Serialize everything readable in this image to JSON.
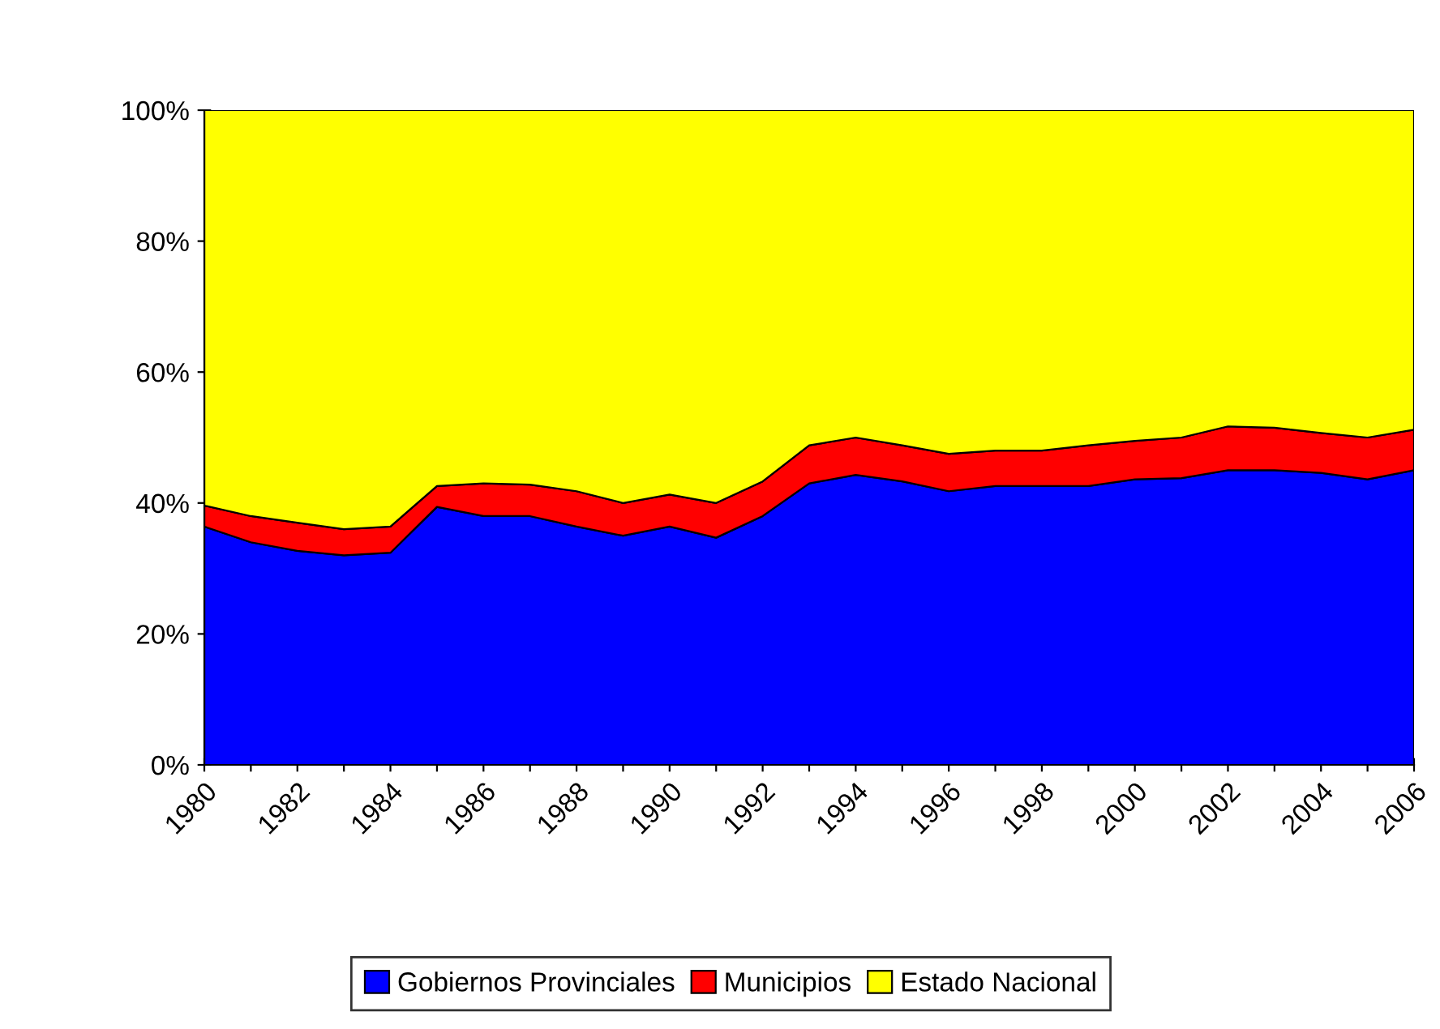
{
  "chart_data": {
    "type": "area",
    "stacked": true,
    "x": [
      1980,
      1981,
      1982,
      1983,
      1984,
      1985,
      1986,
      1987,
      1988,
      1989,
      1990,
      1991,
      1992,
      1993,
      1994,
      1995,
      1996,
      1997,
      1998,
      1999,
      2000,
      2001,
      2002,
      2003,
      2004,
      2005,
      2006
    ],
    "series": [
      {
        "name": "Gobiernos Provinciales",
        "color": "#0000ff",
        "values": [
          36.4,
          34,
          32.7,
          32,
          32.4,
          39.4,
          38,
          38,
          36.4,
          35,
          36.4,
          34.7,
          38,
          43,
          44.3,
          43.3,
          41.8,
          42.6,
          42.6,
          42.6,
          43.6,
          43.8,
          45,
          45,
          44.6,
          43.6,
          45
        ]
      },
      {
        "name": "Municipios",
        "color": "#ff0000",
        "values": [
          3.2,
          4,
          4.3,
          4,
          4,
          3.2,
          5,
          4.8,
          5.4,
          5,
          4.9,
          5.3,
          5.3,
          5.8,
          5.7,
          5.5,
          5.7,
          5.4,
          5.4,
          6.2,
          5.9,
          6.2,
          6.7,
          6.5,
          6.1,
          6.4,
          6.2
        ]
      },
      {
        "name": "Estado Nacional",
        "color": "#ffff00",
        "values": [
          60.4,
          62,
          63,
          64,
          63.6,
          57.4,
          57,
          57.2,
          58.2,
          60,
          58.7,
          60,
          56.7,
          51.2,
          50,
          51.2,
          52.5,
          52,
          52,
          51.2,
          50.5,
          50,
          48.3,
          48.5,
          49.3,
          50,
          48.8
        ]
      }
    ],
    "xlim": [
      1980,
      2006
    ],
    "xticks": [
      1980,
      {
        "value": 1981,
        "label": null
      },
      1982,
      {
        "value": 1983,
        "label": null
      },
      1984,
      {
        "value": 1985,
        "label": null
      },
      1986,
      {
        "value": 1987,
        "label": null
      },
      1988,
      {
        "value": 1989,
        "label": null
      },
      1990,
      {
        "value": 1991,
        "label": null
      },
      1992,
      {
        "value": 1993,
        "label": null
      },
      1994,
      {
        "value": 1995,
        "label": null
      },
      1996,
      {
        "value": 1997,
        "label": null
      },
      1998,
      {
        "value": 1999,
        "label": null
      },
      2000,
      {
        "value": 2001,
        "label": null
      },
      2002,
      {
        "value": 2003,
        "label": null
      },
      2004,
      {
        "value": 2005,
        "label": null
      },
      2006
    ],
    "ylim": [
      0,
      100
    ],
    "yticks": [
      {
        "value": 0,
        "label": "0%"
      },
      {
        "value": 20,
        "label": "20%"
      },
      {
        "value": 40,
        "label": "40%"
      },
      {
        "value": 60,
        "label": "60%"
      },
      {
        "value": 80,
        "label": "80%"
      },
      {
        "value": 100,
        "label": "100%"
      }
    ],
    "legend": "bottom"
  }
}
